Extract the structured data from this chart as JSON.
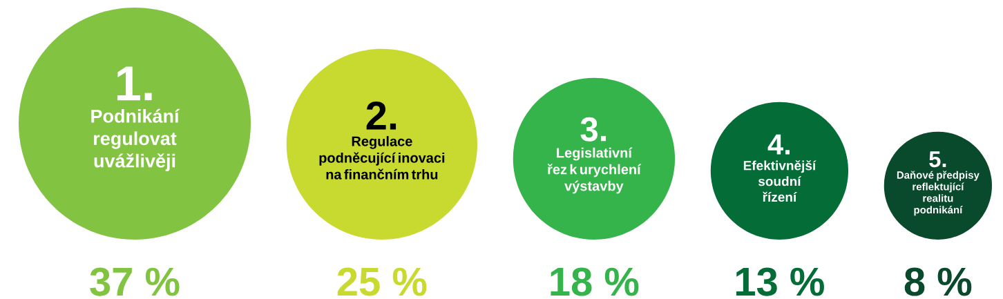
{
  "chart_data": {
    "type": "other",
    "categories": [
      "Podnikání regulovat uvážlivěji",
      "Regulace podněcující inovaci na finančním trhu",
      "Legislativní řez k urychlení výstavby",
      "Efektivnější soudní řízení",
      "Daňové předpisy reflektující realitu podnikání"
    ],
    "values": [
      37,
      25,
      18,
      13,
      8
    ],
    "value_labels": [
      "37 %",
      "25 %",
      "18 %",
      "13 %",
      "8 %"
    ],
    "colors": [
      "#82c341",
      "#c8d92f",
      "#34b44a",
      "#046c36",
      "#0a4a2c"
    ],
    "annotations": [
      "1.",
      "2.",
      "3.",
      "4.",
      "5."
    ]
  }
}
